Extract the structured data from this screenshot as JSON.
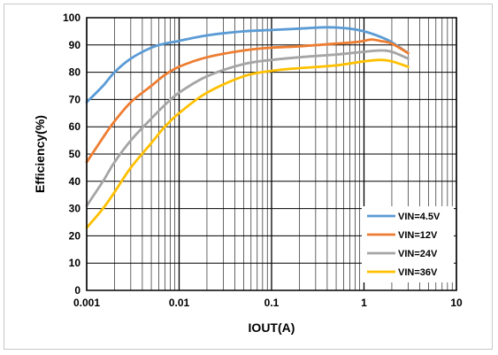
{
  "chart_data": {
    "type": "line",
    "xscale": "log",
    "xlim": [
      0.001,
      10
    ],
    "ylim": [
      0,
      100
    ],
    "xlabel": "IOUT(A)",
    "ylabel": "Efficiency(%)",
    "x_ticks": [
      "0.001",
      "0.01",
      "0.1",
      "1",
      "10"
    ],
    "y_ticks": [
      "0",
      "10",
      "20",
      "30",
      "40",
      "50",
      "60",
      "70",
      "80",
      "90",
      "100"
    ],
    "grid": true,
    "legend_position": "bottom-right",
    "series": [
      {
        "name": "VIN=4.5V",
        "color": "#5B9BD5",
        "points": [
          [
            0.001,
            69
          ],
          [
            0.0015,
            75
          ],
          [
            0.002,
            80
          ],
          [
            0.003,
            85
          ],
          [
            0.005,
            89
          ],
          [
            0.007,
            90.5
          ],
          [
            0.01,
            91.5
          ],
          [
            0.02,
            93.5
          ],
          [
            0.05,
            95
          ],
          [
            0.1,
            95.5
          ],
          [
            0.2,
            96
          ],
          [
            0.4,
            96.5
          ],
          [
            0.7,
            96
          ],
          [
            1,
            95
          ],
          [
            1.5,
            93
          ],
          [
            2,
            91
          ],
          [
            3,
            87
          ]
        ]
      },
      {
        "name": "VIN=12V",
        "color": "#ED7D31",
        "points": [
          [
            0.001,
            47
          ],
          [
            0.0015,
            56
          ],
          [
            0.002,
            62
          ],
          [
            0.003,
            69
          ],
          [
            0.005,
            75
          ],
          [
            0.007,
            79
          ],
          [
            0.01,
            82
          ],
          [
            0.02,
            85.5
          ],
          [
            0.05,
            88
          ],
          [
            0.1,
            89
          ],
          [
            0.2,
            89.5
          ],
          [
            0.5,
            90.5
          ],
          [
            0.8,
            91
          ],
          [
            1,
            91.5
          ],
          [
            1.2,
            92
          ],
          [
            1.5,
            91.5
          ],
          [
            2,
            90.5
          ],
          [
            3,
            87
          ]
        ]
      },
      {
        "name": "VIN=24V",
        "color": "#A5A5A5",
        "points": [
          [
            0.001,
            31
          ],
          [
            0.0015,
            40
          ],
          [
            0.002,
            47
          ],
          [
            0.003,
            55
          ],
          [
            0.005,
            63
          ],
          [
            0.007,
            68
          ],
          [
            0.01,
            72.5
          ],
          [
            0.02,
            78.5
          ],
          [
            0.05,
            83
          ],
          [
            0.1,
            84.5
          ],
          [
            0.2,
            85.5
          ],
          [
            0.5,
            86.5
          ],
          [
            1,
            87.5
          ],
          [
            1.5,
            88
          ],
          [
            2,
            87.5
          ],
          [
            3,
            85
          ]
        ]
      },
      {
        "name": "VIN=36V",
        "color": "#FFC000",
        "points": [
          [
            0.001,
            23
          ],
          [
            0.0015,
            30
          ],
          [
            0.002,
            36
          ],
          [
            0.003,
            45
          ],
          [
            0.005,
            54
          ],
          [
            0.007,
            60
          ],
          [
            0.01,
            65
          ],
          [
            0.02,
            72.5
          ],
          [
            0.05,
            78.5
          ],
          [
            0.1,
            80.5
          ],
          [
            0.2,
            81.5
          ],
          [
            0.5,
            82.5
          ],
          [
            1,
            84
          ],
          [
            1.5,
            84.5
          ],
          [
            2,
            84
          ],
          [
            3,
            82
          ]
        ]
      }
    ]
  }
}
